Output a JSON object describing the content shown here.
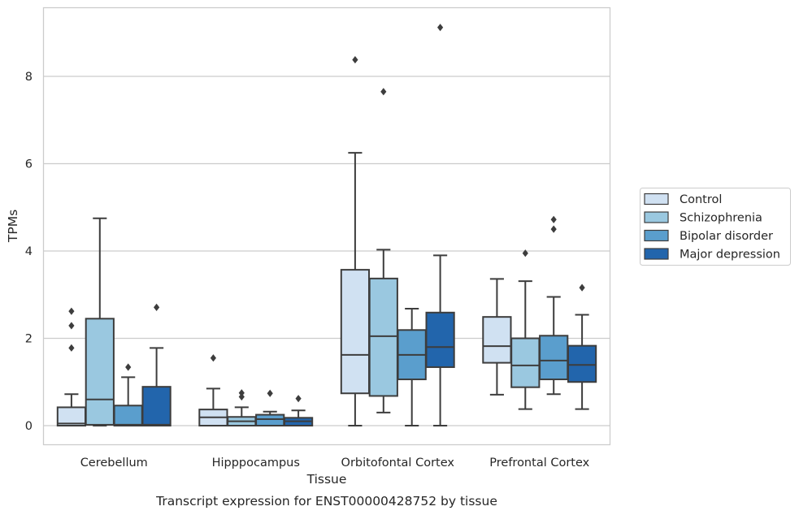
{
  "caption": "Transcript expression for ENST00000428752 by tissue",
  "chart_data": {
    "type": "boxplot",
    "xlabel": "Tissue",
    "ylabel": "TPMs",
    "ylim": [
      -0.45,
      9.6
    ],
    "yticks": [
      0,
      2,
      4,
      6,
      8
    ],
    "grid": "horizontal",
    "legend_position": "right",
    "categories": [
      "Cerebellum",
      "Hipppocampus",
      "Orbitofontal Cortex",
      "Prefrontal Cortex"
    ],
    "series": [
      {
        "name": "Control",
        "color": "#d0e1f2",
        "boxes": [
          {
            "whisker_low": 0,
            "q1": 0,
            "median": 0.05,
            "q3": 0.42,
            "whisker_high": 0.72,
            "outliers": [
              1.78,
              2.29,
              2.62
            ]
          },
          {
            "whisker_low": 0,
            "q1": 0,
            "median": 0.19,
            "q3": 0.37,
            "whisker_high": 0.85,
            "outliers": [
              1.55
            ]
          },
          {
            "whisker_low": 0,
            "q1": 0.74,
            "median": 1.62,
            "q3": 3.57,
            "whisker_high": 6.25,
            "outliers": [
              8.38
            ]
          },
          {
            "whisker_low": 0.71,
            "q1": 1.44,
            "median": 1.82,
            "q3": 2.49,
            "whisker_high": 3.36,
            "outliers": []
          }
        ]
      },
      {
        "name": "Schizophrenia",
        "color": "#9ac8e0",
        "boxes": [
          {
            "whisker_low": 0,
            "q1": 0.02,
            "median": 0.6,
            "q3": 2.45,
            "whisker_high": 4.75,
            "outliers": []
          },
          {
            "whisker_low": 0,
            "q1": 0,
            "median": 0.1,
            "q3": 0.2,
            "whisker_high": 0.42,
            "outliers": [
              0.66,
              0.75
            ]
          },
          {
            "whisker_low": 0.3,
            "q1": 0.68,
            "median": 2.05,
            "q3": 3.37,
            "whisker_high": 4.03,
            "outliers": [
              7.65
            ]
          },
          {
            "whisker_low": 0.38,
            "q1": 0.88,
            "median": 1.38,
            "q3": 2.0,
            "whisker_high": 3.31,
            "outliers": [
              3.95
            ]
          }
        ]
      },
      {
        "name": "Bipolar disorder",
        "color": "#5a9ecd",
        "boxes": [
          {
            "whisker_low": 0,
            "q1": 0,
            "median": 0.02,
            "q3": 0.46,
            "whisker_high": 1.11,
            "outliers": [
              1.34
            ]
          },
          {
            "whisker_low": 0,
            "q1": 0,
            "median": 0.15,
            "q3": 0.25,
            "whisker_high": 0.32,
            "outliers": [
              0.74
            ]
          },
          {
            "whisker_low": 0,
            "q1": 1.06,
            "median": 1.62,
            "q3": 2.19,
            "whisker_high": 2.68,
            "outliers": []
          },
          {
            "whisker_low": 0.72,
            "q1": 1.06,
            "median": 1.49,
            "q3": 2.06,
            "whisker_high": 2.95,
            "outliers": [
              4.5,
              4.72
            ]
          }
        ]
      },
      {
        "name": "Major depression",
        "color": "#2265ac",
        "boxes": [
          {
            "whisker_low": 0,
            "q1": 0,
            "median": 0.02,
            "q3": 0.89,
            "whisker_high": 1.78,
            "outliers": [
              2.71
            ]
          },
          {
            "whisker_low": 0,
            "q1": 0,
            "median": 0.1,
            "q3": 0.18,
            "whisker_high": 0.35,
            "outliers": [
              0.62
            ]
          },
          {
            "whisker_low": 0,
            "q1": 1.34,
            "median": 1.8,
            "q3": 2.59,
            "whisker_high": 3.9,
            "outliers": [
              9.12
            ]
          },
          {
            "whisker_low": 0.38,
            "q1": 1.0,
            "median": 1.39,
            "q3": 1.83,
            "whisker_high": 2.54,
            "outliers": [
              3.16
            ]
          }
        ]
      }
    ]
  }
}
